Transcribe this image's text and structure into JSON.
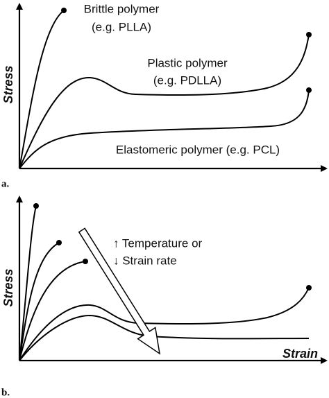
{
  "panels": [
    {
      "label": "a.",
      "y_axis": "Stress",
      "annotations": [
        "Brittle polymer",
        "(e.g. PLLA)",
        "Plastic polymer",
        "(e.g. PDLLA)",
        "Elastomeric polymer (e.g. PCL)"
      ]
    },
    {
      "label": "b.",
      "y_axis": "Stress",
      "x_axis": "Strain",
      "annotations": [
        "↑ Temperature or",
        "↓ Strain rate"
      ]
    }
  ]
}
